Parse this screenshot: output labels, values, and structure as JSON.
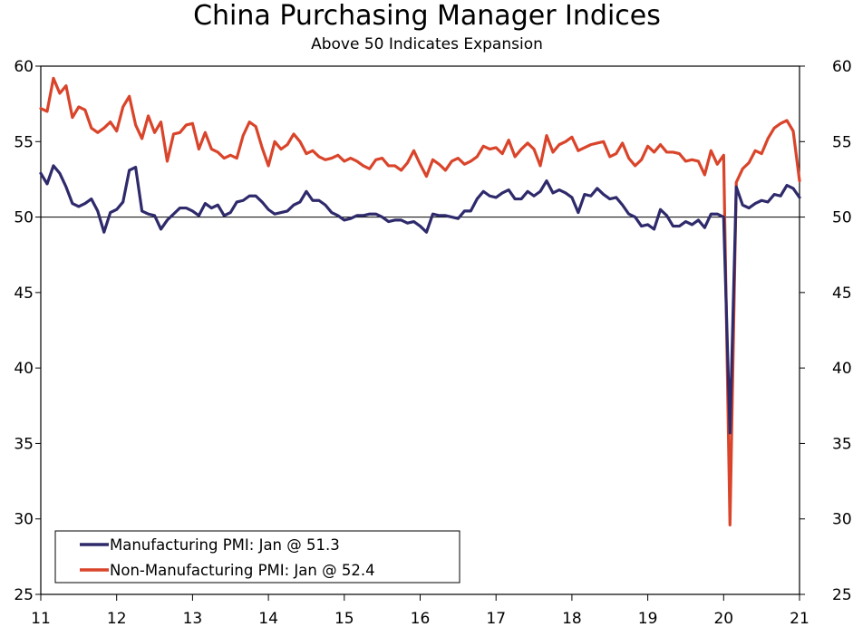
{
  "chart_data": {
    "type": "line",
    "title": "China Purchasing Manager Indices",
    "subtitle": "Above 50 Indicates Expansion",
    "xlabel": "",
    "ylabel": "",
    "ylim": [
      25,
      60
    ],
    "y_ticks": [
      25,
      30,
      35,
      40,
      45,
      50,
      55,
      60
    ],
    "y_ticks_right": [
      25,
      30,
      35,
      40,
      45,
      50,
      55,
      60
    ],
    "x_ticks": [
      "11",
      "12",
      "13",
      "14",
      "15",
      "16",
      "17",
      "18",
      "19",
      "20",
      "21"
    ],
    "reference_line": 50,
    "grid": false,
    "legend_position": "bottom-left",
    "x_start": "2011-01",
    "x_end": "2021-01",
    "series": [
      {
        "name": "Manufacturing PMI: Jan @ 51.3",
        "color": "#2e2a6b",
        "values": [
          52.9,
          52.2,
          53.4,
          52.9,
          52.0,
          50.9,
          50.7,
          50.9,
          51.2,
          50.4,
          49.0,
          50.3,
          50.5,
          51.0,
          53.1,
          53.3,
          50.4,
          50.2,
          50.1,
          49.2,
          49.8,
          50.2,
          50.6,
          50.6,
          50.4,
          50.1,
          50.9,
          50.6,
          50.8,
          50.1,
          50.3,
          51.0,
          51.1,
          51.4,
          51.4,
          51.0,
          50.5,
          50.2,
          50.3,
          50.4,
          50.8,
          51.0,
          51.7,
          51.1,
          51.1,
          50.8,
          50.3,
          50.1,
          49.8,
          49.9,
          50.1,
          50.1,
          50.2,
          50.2,
          50.0,
          49.7,
          49.8,
          49.8,
          49.6,
          49.7,
          49.4,
          49.0,
          50.2,
          50.1,
          50.1,
          50.0,
          49.9,
          50.4,
          50.4,
          51.2,
          51.7,
          51.4,
          51.3,
          51.6,
          51.8,
          51.2,
          51.2,
          51.7,
          51.4,
          51.7,
          52.4,
          51.6,
          51.8,
          51.6,
          51.3,
          50.3,
          51.5,
          51.4,
          51.9,
          51.5,
          51.2,
          51.3,
          50.8,
          50.2,
          50.0,
          49.4,
          49.5,
          49.2,
          50.5,
          50.1,
          49.4,
          49.4,
          49.7,
          49.5,
          49.8,
          49.3,
          50.2,
          50.2,
          50.0,
          35.7,
          52.0,
          50.8,
          50.6,
          50.9,
          51.1,
          51.0,
          51.5,
          51.4,
          52.1,
          51.9,
          51.3
        ],
        "last_value": 51.3
      },
      {
        "name": "Non-Manufacturing PMI: Jan @ 52.4",
        "color": "#d9442a",
        "values": [
          57.2,
          57.0,
          59.2,
          58.2,
          58.7,
          56.6,
          57.3,
          57.1,
          55.9,
          55.6,
          55.9,
          56.3,
          55.7,
          57.3,
          58.0,
          56.1,
          55.2,
          56.7,
          55.6,
          56.3,
          53.7,
          55.5,
          55.6,
          56.1,
          56.2,
          54.5,
          55.6,
          54.5,
          54.3,
          53.9,
          54.1,
          53.9,
          55.4,
          56.3,
          56.0,
          54.6,
          53.4,
          55.0,
          54.5,
          54.8,
          55.5,
          55.0,
          54.2,
          54.4,
          54.0,
          53.8,
          53.9,
          54.1,
          53.7,
          53.9,
          53.7,
          53.4,
          53.2,
          53.8,
          53.9,
          53.4,
          53.4,
          53.1,
          53.6,
          54.4,
          53.5,
          52.7,
          53.8,
          53.5,
          53.1,
          53.7,
          53.9,
          53.5,
          53.7,
          54.0,
          54.7,
          54.5,
          54.6,
          54.2,
          55.1,
          54.0,
          54.5,
          54.9,
          54.5,
          53.4,
          55.4,
          54.3,
          54.8,
          55.0,
          55.3,
          54.4,
          54.6,
          54.8,
          54.9,
          55.0,
          54.0,
          54.2,
          54.9,
          53.9,
          53.4,
          53.8,
          54.7,
          54.3,
          54.8,
          54.3,
          54.3,
          54.2,
          53.7,
          53.8,
          53.7,
          52.8,
          54.4,
          53.5,
          54.1,
          29.6,
          52.3,
          53.2,
          53.6,
          54.4,
          54.2,
          55.2,
          55.9,
          56.2,
          56.4,
          55.7,
          52.4
        ],
        "last_value": 52.4
      }
    ]
  }
}
